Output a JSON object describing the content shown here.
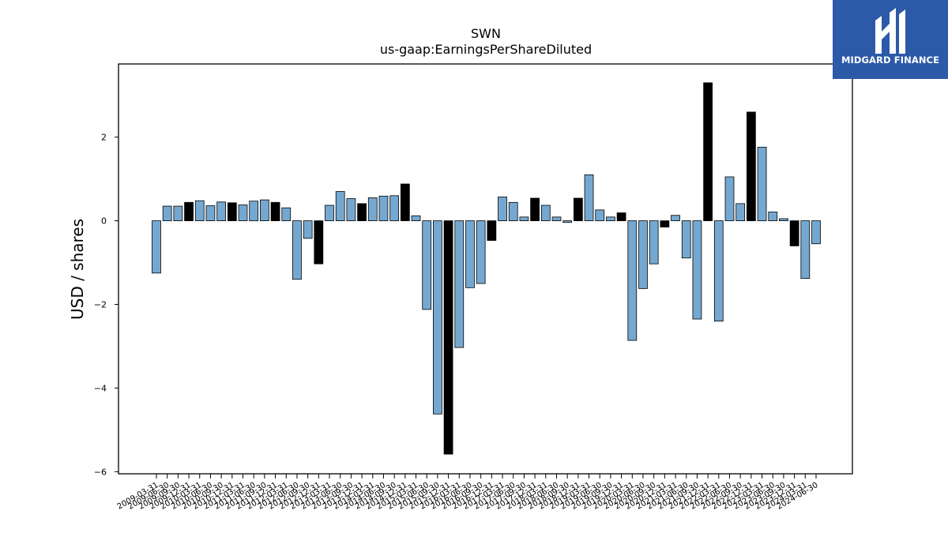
{
  "brand": {
    "name": "MIDGARD FINANCE",
    "icon": "midgard-logo-icon",
    "color": "#2c5aa8"
  },
  "chart_data": {
    "type": "bar",
    "title": "SWN",
    "subtitle": "us-gaap:EarningsPerShareDiluted",
    "ylabel": "USD / shares",
    "xlabel": "",
    "ylim": [
      -6.05,
      3.75
    ],
    "yticks": [
      2,
      0,
      -2,
      -4,
      -6
    ],
    "ytick_labels": [
      "2",
      "0",
      "−2",
      "−4",
      "−6"
    ],
    "grid": false,
    "colors": {
      "quarter": "#75a8d0",
      "annual": "#000000"
    },
    "categories": [
      "2009-03-31",
      "2009-06-30",
      "2009-09-30",
      "2009-12-31",
      "2010-03-31",
      "2010-06-30",
      "2010-09-30",
      "2010-12-31",
      "2011-03-31",
      "2011-06-30",
      "2011-09-30",
      "2011-12-31",
      "2012-03-31",
      "2012-06-30",
      "2012-09-30",
      "2012-12-31",
      "2013-03-31",
      "2013-06-30",
      "2013-09-30",
      "2013-12-31",
      "2014-03-31",
      "2014-06-30",
      "2014-09-30",
      "2014-12-31",
      "2015-03-31",
      "2015-06-30",
      "2015-09-30",
      "2015-12-31",
      "2016-03-31",
      "2016-06-30",
      "2016-09-30",
      "2016-12-31",
      "2017-03-31",
      "2017-06-30",
      "2017-09-30",
      "2017-12-31",
      "2018-03-31",
      "2018-06-30",
      "2018-09-30",
      "2018-12-31",
      "2019-03-31",
      "2019-06-30",
      "2019-09-30",
      "2019-12-31",
      "2020-03-31",
      "2020-06-30",
      "2020-09-30",
      "2020-12-31",
      "2021-03-31",
      "2021-06-30",
      "2021-09-30",
      "2021-12-31",
      "2022-03-31",
      "2022-06-30",
      "2022-09-30",
      "2022-12-31",
      "2023-03-31",
      "2023-06-30",
      "2023-09-30",
      "2023-12-31",
      "2024-03-31",
      "2024-06-30"
    ],
    "values": [
      -1.25,
      0.35,
      0.35,
      0.44,
      0.48,
      0.36,
      0.45,
      0.43,
      0.38,
      0.47,
      0.5,
      0.44,
      0.31,
      -1.4,
      -0.42,
      -1.03,
      0.37,
      0.7,
      0.53,
      0.41,
      0.55,
      0.59,
      0.6,
      0.88,
      0.12,
      -2.12,
      -4.62,
      -5.58,
      -3.03,
      -1.6,
      -1.5,
      -0.47,
      0.57,
      0.44,
      0.09,
      0.54,
      0.37,
      0.09,
      -0.04,
      0.54,
      1.1,
      0.26,
      0.09,
      0.19,
      -2.86,
      -1.62,
      -1.03,
      -0.15,
      0.13,
      -0.89,
      -2.35,
      3.3,
      -2.4,
      1.05,
      0.41,
      2.6,
      1.76,
      0.21,
      0.05,
      -0.6,
      -1.38,
      -0.55
    ],
    "annual": [
      false,
      false,
      false,
      true,
      false,
      false,
      false,
      true,
      false,
      false,
      false,
      true,
      false,
      false,
      false,
      true,
      false,
      false,
      false,
      true,
      false,
      false,
      false,
      true,
      false,
      false,
      false,
      true,
      false,
      false,
      false,
      true,
      false,
      false,
      false,
      true,
      false,
      false,
      false,
      true,
      false,
      false,
      false,
      true,
      false,
      false,
      false,
      true,
      false,
      false,
      false,
      true,
      false,
      false,
      false,
      true,
      false,
      false,
      false,
      true,
      false,
      false
    ]
  }
}
